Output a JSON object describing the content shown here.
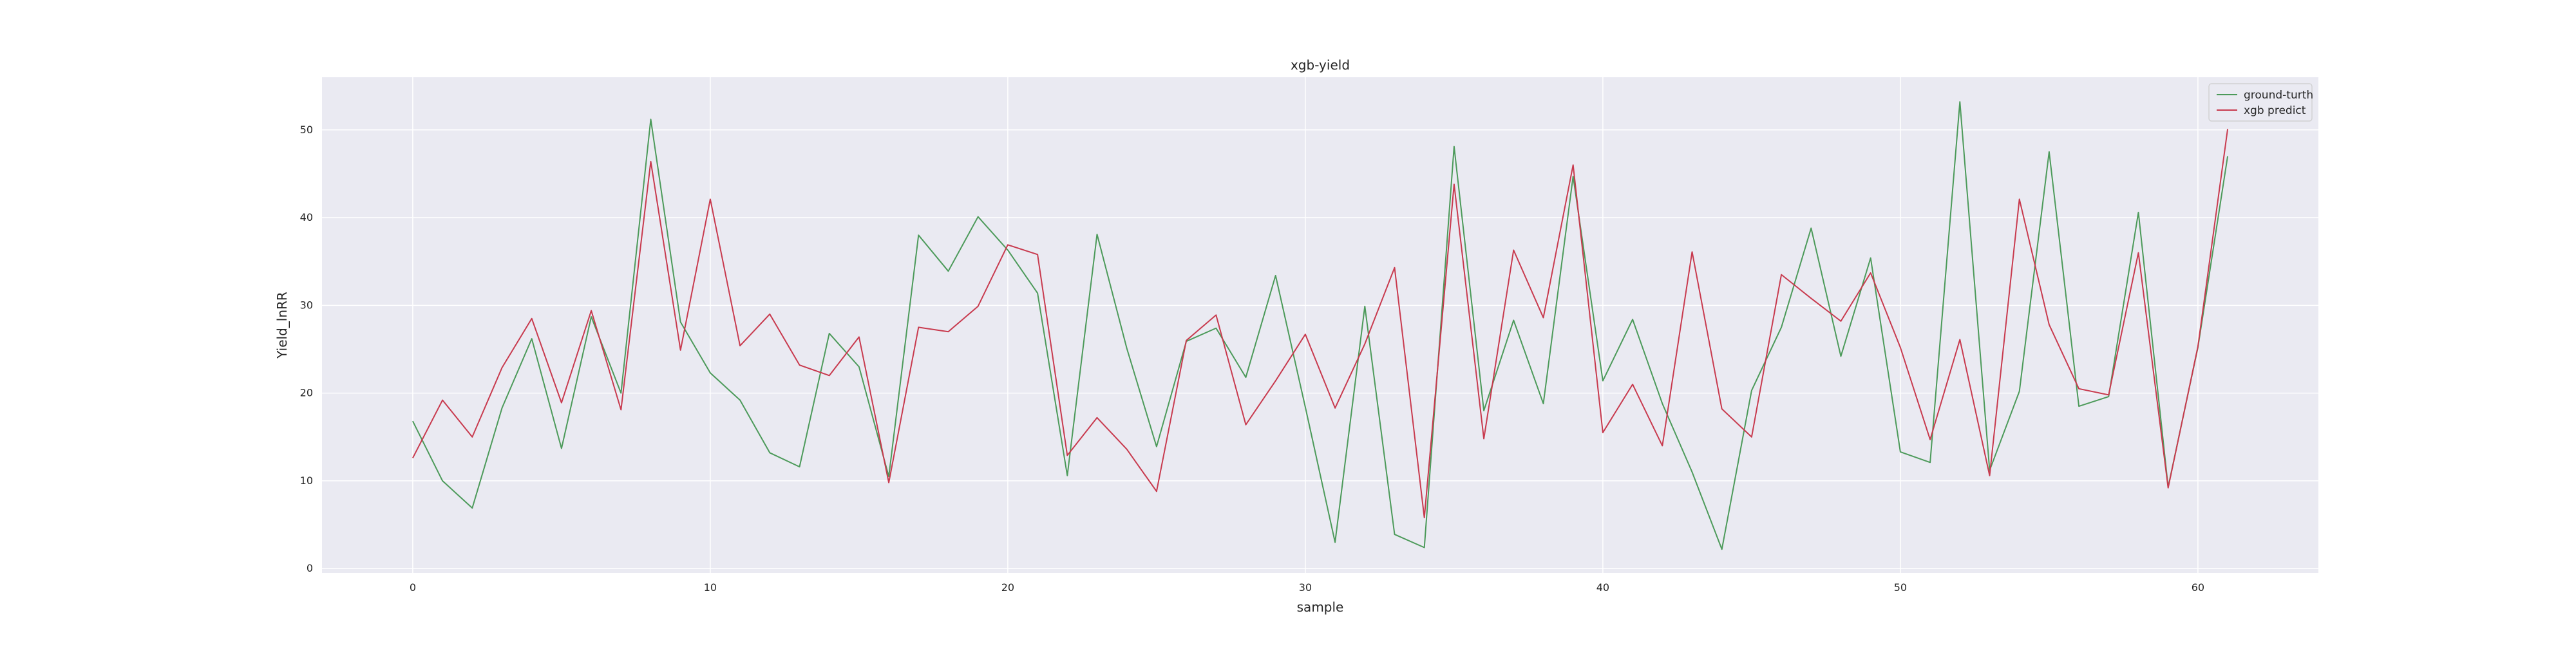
{
  "chart_data": {
    "type": "line",
    "title": "xgb-yield",
    "xlabel": "sample",
    "ylabel": "Yield_lnRR",
    "xlim": [
      -3.05,
      64.05
    ],
    "ylim": [
      -0.5,
      56.0
    ],
    "xticks": [
      0,
      10,
      20,
      30,
      40,
      50,
      60
    ],
    "yticks": [
      0,
      10,
      20,
      30,
      40,
      50
    ],
    "grid": true,
    "legend_position": "top-right",
    "x": [
      0,
      1,
      2,
      3,
      4,
      5,
      6,
      7,
      8,
      9,
      10,
      11,
      12,
      13,
      14,
      15,
      16,
      17,
      18,
      19,
      20,
      21,
      22,
      23,
      24,
      25,
      26,
      27,
      28,
      29,
      30,
      31,
      32,
      33,
      34,
      35,
      36,
      37,
      38,
      39,
      40,
      41,
      42,
      43,
      44,
      45,
      46,
      47,
      48,
      49,
      50,
      51,
      52,
      53,
      54,
      55,
      56,
      57,
      58,
      59,
      60,
      61
    ],
    "series": [
      {
        "name": "ground-turth",
        "color": "#4c9a5a",
        "values": [
          16.8,
          10.0,
          6.9,
          18.3,
          26.2,
          13.7,
          28.7,
          20.0,
          51.2,
          28.1,
          22.3,
          19.2,
          13.2,
          11.6,
          26.8,
          23.0,
          10.5,
          38.0,
          33.9,
          40.1,
          36.3,
          31.4,
          10.6,
          38.1,
          25.1,
          13.9,
          25.9,
          27.4,
          21.8,
          33.4,
          18.4,
          3.0,
          29.9,
          3.9,
          2.4,
          48.1,
          18.0,
          28.3,
          18.8,
          44.7,
          21.4,
          28.4,
          18.8,
          11.0,
          2.2,
          20.3,
          27.5,
          38.8,
          24.2,
          35.4,
          13.3,
          12.1,
          53.2,
          11.2,
          20.2,
          47.5,
          18.5,
          19.6,
          40.6,
          9.3,
          25.2,
          47.0
        ]
      },
      {
        "name": "xgb predict",
        "color": "#c83a4e",
        "values": [
          12.6,
          19.2,
          15.0,
          22.9,
          28.5,
          18.9,
          29.4,
          18.1,
          46.4,
          24.9,
          42.1,
          25.4,
          29.0,
          23.2,
          22.0,
          26.4,
          9.8,
          27.5,
          27.0,
          29.9,
          36.9,
          35.8,
          12.9,
          17.2,
          13.6,
          8.8,
          26.0,
          28.9,
          16.4,
          21.4,
          26.7,
          18.3,
          25.6,
          34.3,
          5.8,
          43.8,
          14.8,
          36.3,
          28.6,
          46.0,
          15.5,
          21.0,
          14.0,
          36.1,
          18.2,
          15.0,
          33.5,
          30.8,
          28.2,
          33.7,
          25.2,
          14.7,
          26.1,
          10.6,
          42.1,
          27.8,
          20.5,
          19.8,
          36.0,
          9.2,
          25.3,
          50.1
        ]
      }
    ]
  },
  "colors": {
    "figure_bg": "#ffffff",
    "axes_bg": "#eaeaf2",
    "grid": "#ffffff"
  }
}
